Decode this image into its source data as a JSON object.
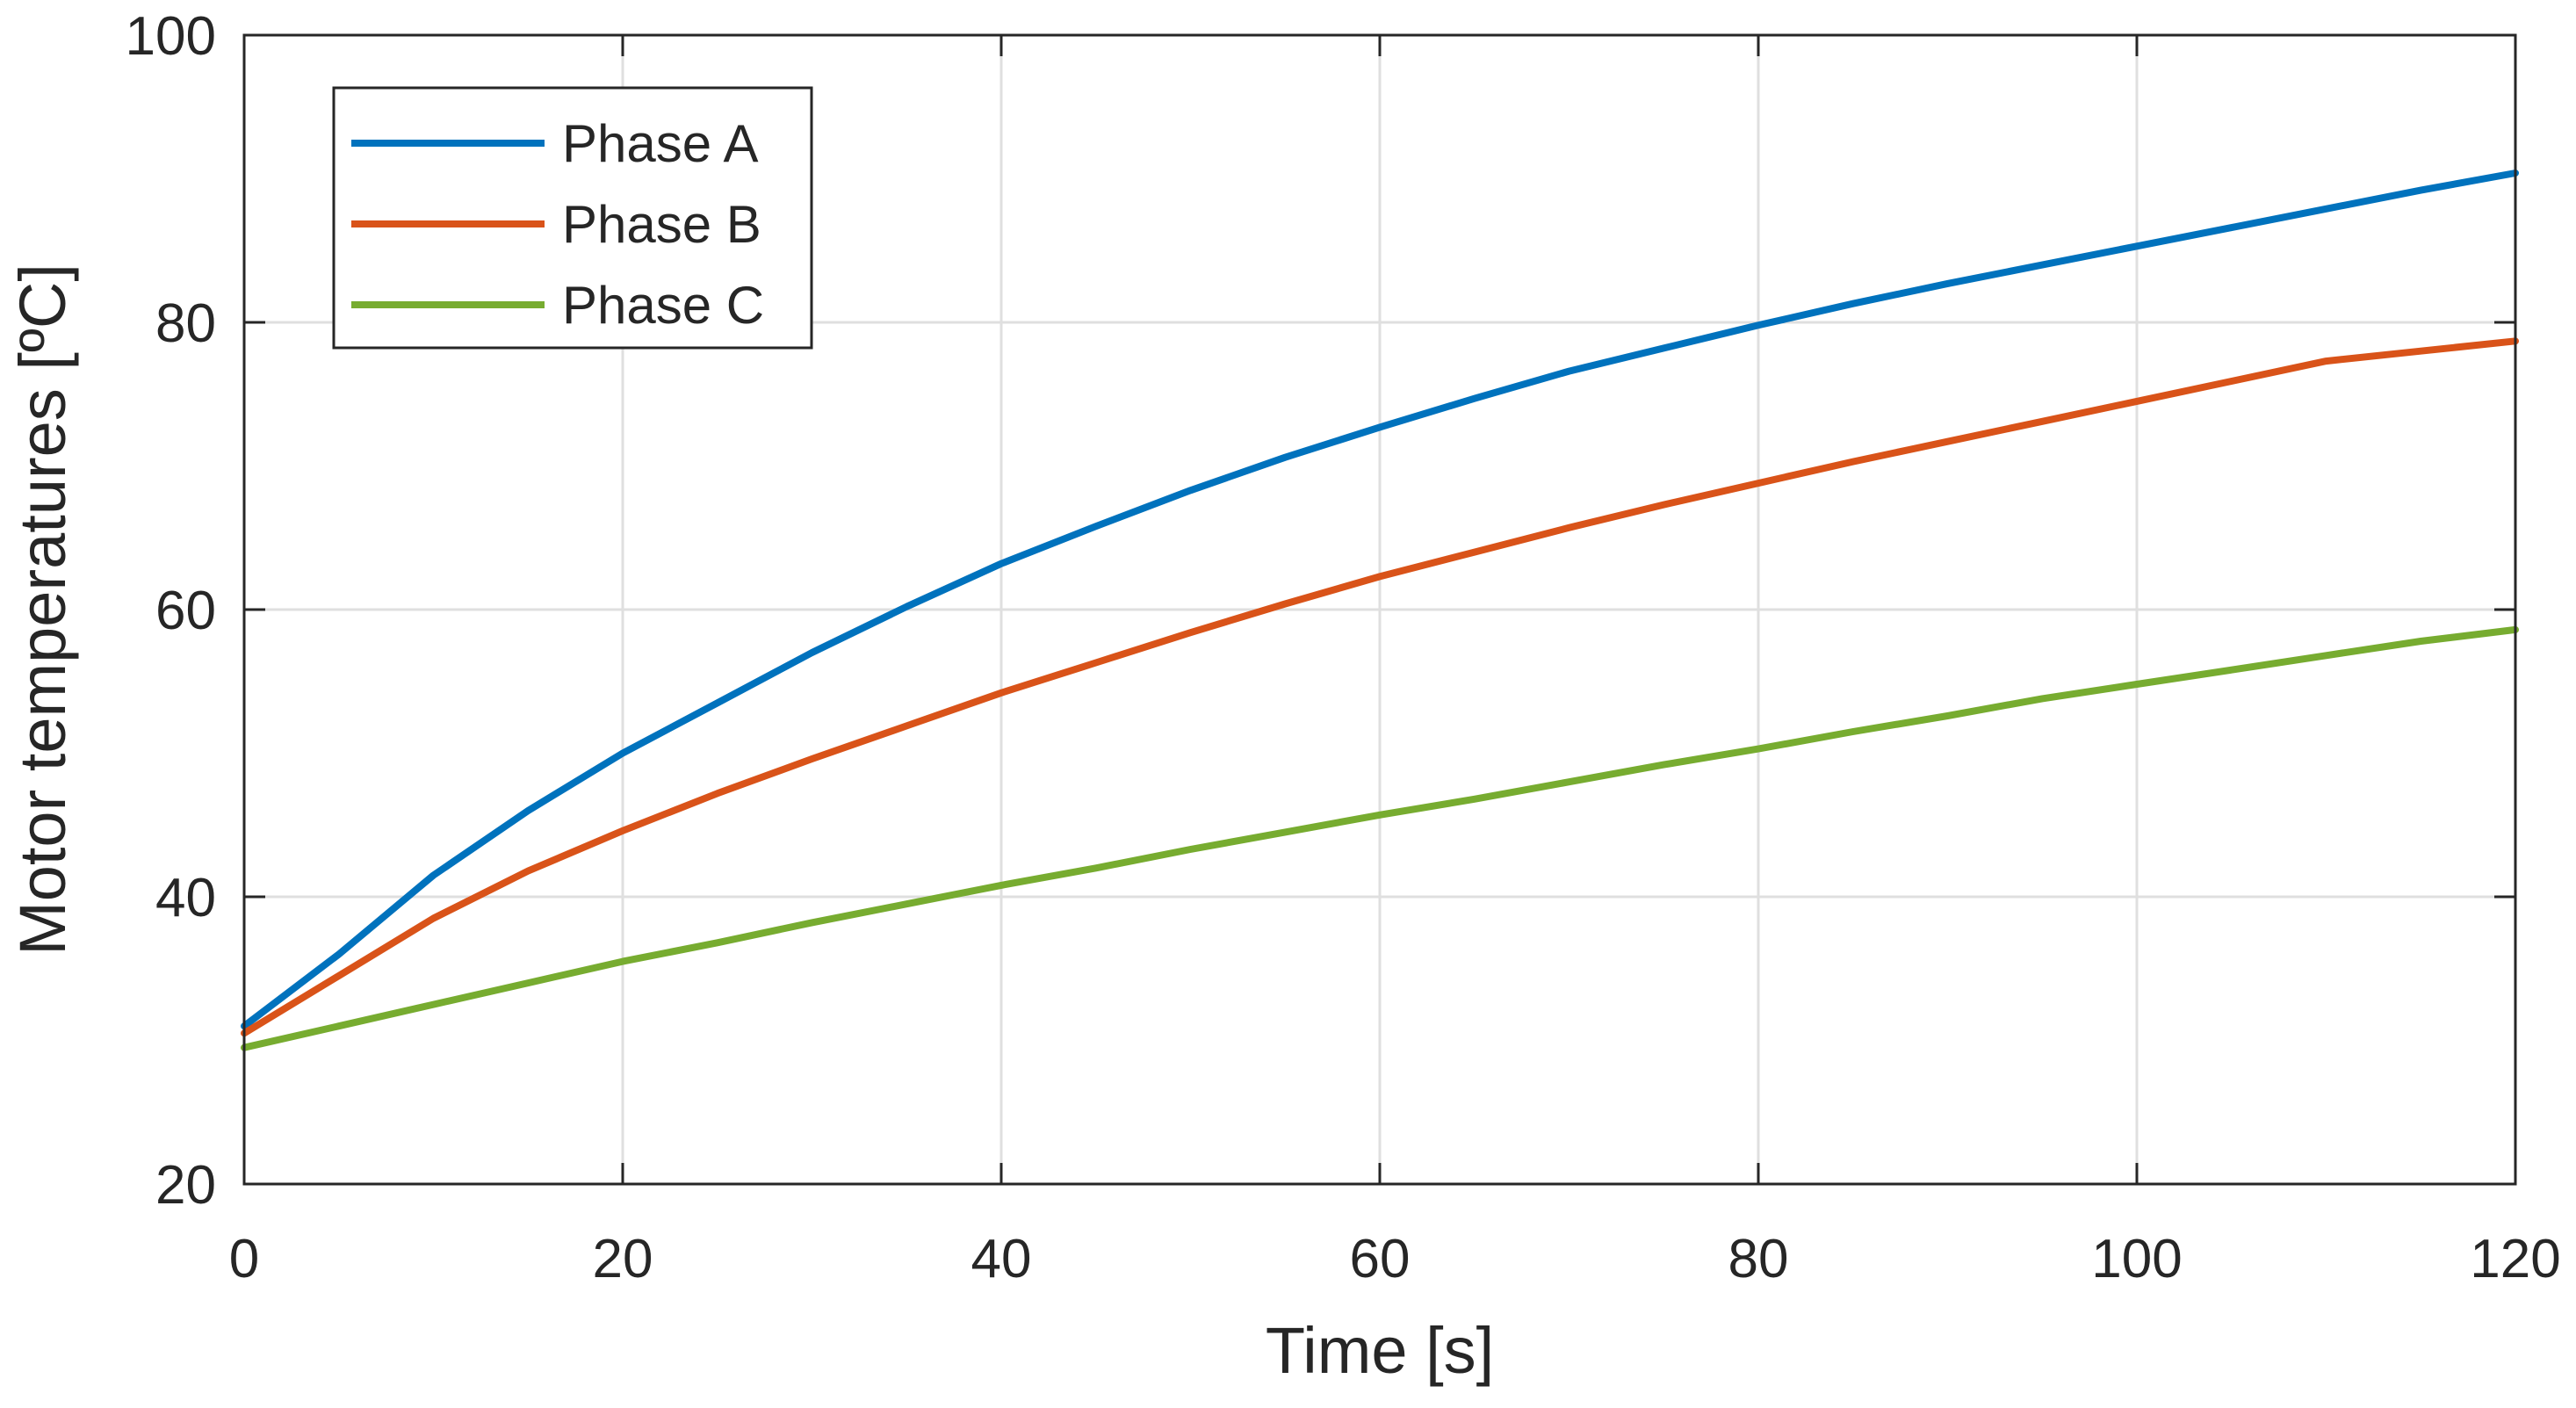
{
  "chart_data": {
    "type": "line",
    "title": "",
    "xlabel": "Time [s]",
    "ylabel": "Motor temperatures [ºC]",
    "xlim": [
      0,
      120
    ],
    "ylim": [
      20,
      100
    ],
    "xticks": [
      0,
      20,
      40,
      60,
      80,
      100,
      120
    ],
    "yticks": [
      20,
      40,
      60,
      80,
      100
    ],
    "xtick_labels": [
      "0",
      "20",
      "40",
      "60",
      "80",
      "100",
      "120"
    ],
    "ytick_labels": [
      "20",
      "40",
      "60",
      "80",
      "100"
    ],
    "grid": true,
    "legend_position": "top-left",
    "x": [
      0,
      5,
      10,
      15,
      20,
      25,
      30,
      35,
      40,
      45,
      50,
      55,
      60,
      65,
      70,
      75,
      80,
      85,
      90,
      95,
      100,
      105,
      110,
      115,
      120
    ],
    "series": [
      {
        "name": "Phase A",
        "color": "#0072BD",
        "values": [
          31.0,
          36.0,
          41.5,
          46.0,
          50.0,
          53.5,
          57.0,
          60.2,
          63.2,
          65.8,
          68.3,
          70.6,
          72.7,
          74.7,
          76.6,
          78.2,
          79.8,
          81.3,
          82.7,
          84.0,
          85.3,
          86.6,
          87.9,
          89.2,
          90.4
        ]
      },
      {
        "name": "Phase B",
        "color": "#D95319",
        "values": [
          30.5,
          34.5,
          38.5,
          41.8,
          44.6,
          47.2,
          49.6,
          51.9,
          54.2,
          56.3,
          58.4,
          60.4,
          62.3,
          64.0,
          65.7,
          67.3,
          68.8,
          70.3,
          71.7,
          73.1,
          74.5,
          75.9,
          77.3,
          78.0,
          78.7
        ]
      },
      {
        "name": "Phase C",
        "color": "#77AC30",
        "values": [
          29.5,
          31.0,
          32.5,
          34.0,
          35.5,
          36.8,
          38.2,
          39.5,
          40.8,
          42.0,
          43.3,
          44.5,
          45.7,
          46.8,
          48.0,
          49.2,
          50.3,
          51.5,
          52.6,
          53.8,
          54.8,
          55.8,
          56.8,
          57.8,
          58.6
        ]
      }
    ]
  }
}
